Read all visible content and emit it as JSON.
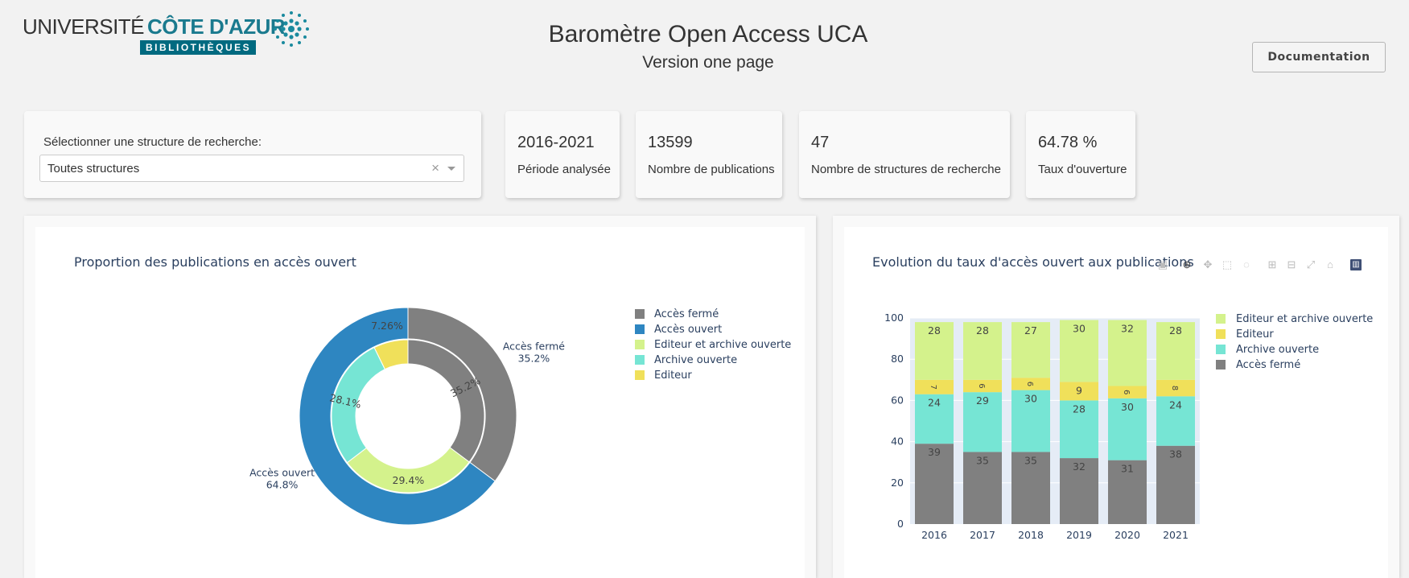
{
  "logo": {
    "university": "UNIVERSITÉ",
    "name": "CÔTE D'AZUR",
    "subtitle": "BIBLIOTHÈQUES"
  },
  "header": {
    "title": "Baromètre Open Access UCA",
    "subtitle": "Version one page",
    "documentation_label": "Documentation"
  },
  "filter": {
    "label": "Sélectionner une structure de recherche:",
    "value": "Toutes structures",
    "clear_label": "×"
  },
  "kpis": [
    {
      "value": "2016-2021",
      "label": "Période analysée"
    },
    {
      "value": "13599",
      "label": "Nombre de publications"
    },
    {
      "value": "47",
      "label": "Nombre de structures de recherche"
    },
    {
      "value": "64.78 %",
      "label": "Taux d'ouverture"
    }
  ],
  "chart_data": [
    {
      "type": "pie",
      "title": "Proportion des publications en accès ouvert",
      "outer_ring": {
        "labels": [
          "Accès fermé",
          "Accès ouvert"
        ],
        "values": [
          35.2,
          64.8
        ],
        "text": [
          "Accès fermé\n35.2%",
          "Accès ouvert\n64.8%"
        ],
        "colors": [
          "#808080",
          "#2e86c1"
        ]
      },
      "inner_ring": {
        "labels": [
          "Accès fermé",
          "Editeur et archive ouverte",
          "Archive ouverte",
          "Editeur"
        ],
        "values": [
          35.2,
          29.4,
          28.1,
          7.26
        ],
        "text": [
          "35.2%",
          "29.4%",
          "28.1%",
          "7.26%"
        ],
        "colors": [
          "#808080",
          "#d4f28c",
          "#76e5d4",
          "#f0e05a"
        ]
      },
      "legend": {
        "position": "right",
        "entries": [
          {
            "name": "Accès fermé",
            "color": "#808080"
          },
          {
            "name": "Accès ouvert",
            "color": "#2e86c1"
          },
          {
            "name": "Editeur et archive ouverte",
            "color": "#d4f28c"
          },
          {
            "name": "Archive ouverte",
            "color": "#76e5d4"
          },
          {
            "name": "Editeur",
            "color": "#f0e05a"
          }
        ]
      }
    },
    {
      "type": "bar",
      "stacked": true,
      "title": "Evolution du taux d'accès ouvert aux publications",
      "categories": [
        "2016",
        "2017",
        "2018",
        "2019",
        "2020",
        "2021"
      ],
      "ylim": [
        0,
        100
      ],
      "yticks": [
        0,
        20,
        40,
        60,
        80,
        100
      ],
      "series": [
        {
          "name": "Accès fermé",
          "color": "#808080",
          "values": [
            39,
            35,
            35,
            32,
            31,
            38
          ]
        },
        {
          "name": "Archive ouverte",
          "color": "#76e5d4",
          "values": [
            24,
            29,
            30,
            28,
            30,
            24
          ]
        },
        {
          "name": "Editeur",
          "color": "#f0e05a",
          "values": [
            7,
            6,
            6,
            9,
            6,
            8
          ]
        },
        {
          "name": "Editeur et archive ouverte",
          "color": "#d4f28c",
          "values": [
            28,
            28,
            27,
            30,
            32,
            28
          ]
        }
      ],
      "legend": {
        "position": "right",
        "entries": [
          {
            "name": "Editeur et archive ouverte",
            "color": "#d4f28c"
          },
          {
            "name": "Editeur",
            "color": "#f0e05a"
          },
          {
            "name": "Archive ouverte",
            "color": "#76e5d4"
          },
          {
            "name": "Accès fermé",
            "color": "#808080"
          }
        ]
      }
    }
  ],
  "modebar": [
    "camera-icon",
    "zoom-icon",
    "pan-icon",
    "box-select-icon",
    "lasso-icon",
    "zoom-in-icon",
    "zoom-out-icon",
    "autoscale-icon",
    "reset-axes-icon",
    "plotly-logo-icon"
  ]
}
